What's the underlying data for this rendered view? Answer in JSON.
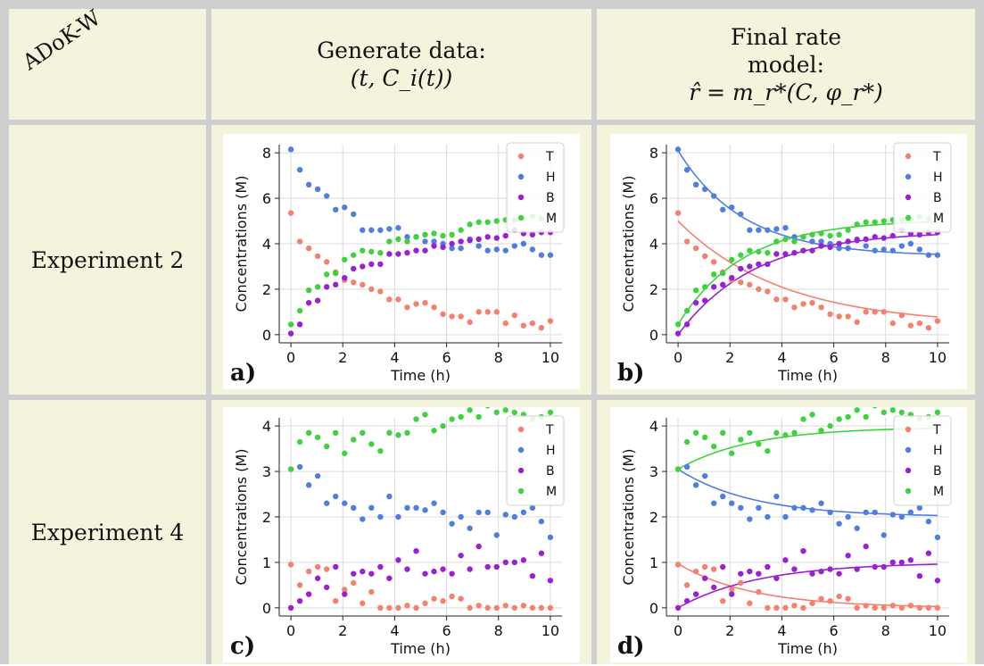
{
  "table": {
    "corner_label": "ADoK-W",
    "col1_header": [
      "Generate data:",
      "(t, C_i(t))"
    ],
    "col2_header": [
      "Final rate",
      "model:",
      "r̂ = m_r*(C, φ_r*)"
    ],
    "rows": [
      "Experiment 2",
      "Experiment 4"
    ]
  },
  "colors": {
    "T": "#f5806d",
    "H": "#4f7ee0",
    "B": "#9a21d3",
    "M": "#3fd23f",
    "cell_bg": "#f4f4dc",
    "border": "#cfcfcf"
  },
  "chart_data": [
    {
      "panel_label": "a)",
      "type": "scatter",
      "xlabel": "Time (h)",
      "ylabel": "Concentrations (M)",
      "xlim": [
        0,
        10
      ],
      "ylim": [
        0,
        8
      ],
      "xticks": [
        0,
        2,
        4,
        6,
        8,
        10
      ],
      "yticks": [
        0,
        2,
        4,
        6,
        8
      ],
      "legend": "top-right",
      "grid": true,
      "x": [
        0,
        0.345,
        0.69,
        1.034,
        1.379,
        1.724,
        2.069,
        2.414,
        2.759,
        3.103,
        3.448,
        3.793,
        4.138,
        4.483,
        4.828,
        5.172,
        5.517,
        5.862,
        6.207,
        6.552,
        6.897,
        7.241,
        7.586,
        7.931,
        8.276,
        8.621,
        8.966,
        9.31,
        9.655,
        10
      ],
      "series": [
        {
          "name": "T",
          "values": [
            5.35,
            4.1,
            3.8,
            3.45,
            3.2,
            2.75,
            2.4,
            2.3,
            2.2,
            2.0,
            1.9,
            1.55,
            1.55,
            1.2,
            1.35,
            1.4,
            1.2,
            0.9,
            0.8,
            0.8,
            0.55,
            1.0,
            1.0,
            1.0,
            0.5,
            0.85,
            0.4,
            0.5,
            0.3,
            0.6
          ]
        },
        {
          "name": "H",
          "values": [
            8.15,
            7.25,
            6.6,
            6.4,
            6.1,
            5.5,
            5.6,
            5.3,
            4.6,
            4.6,
            4.6,
            4.65,
            4.7,
            4.3,
            4.3,
            4.1,
            4.1,
            4.0,
            3.8,
            3.8,
            4.2,
            3.9,
            3.7,
            3.75,
            3.7,
            3.9,
            4.0,
            3.75,
            3.5,
            3.5
          ]
        },
        {
          "name": "B",
          "values": [
            0.05,
            0.45,
            1.4,
            1.5,
            2.1,
            2.2,
            2.5,
            2.9,
            3.0,
            3.1,
            3.1,
            3.55,
            3.55,
            3.6,
            3.7,
            3.7,
            3.9,
            3.85,
            4.0,
            4.1,
            4.15,
            4.2,
            4.3,
            4.25,
            4.35,
            4.6,
            4.45,
            4.4,
            4.5,
            4.5
          ]
        },
        {
          "name": "M",
          "values": [
            0.45,
            1.05,
            1.95,
            2.1,
            2.65,
            2.7,
            3.3,
            3.5,
            3.7,
            3.65,
            3.6,
            4.1,
            4.2,
            4.1,
            4.3,
            4.4,
            4.45,
            4.35,
            4.4,
            4.6,
            4.85,
            4.95,
            4.95,
            5.0,
            5.05,
            5.05,
            5.1,
            5.2,
            5.1,
            5.15
          ]
        }
      ]
    },
    {
      "panel_label": "b)",
      "type": "scatter",
      "xlabel": "Time (h)",
      "ylabel": "Concentrations (M)",
      "xlim": [
        0,
        10
      ],
      "ylim": [
        0,
        8
      ],
      "xticks": [
        0,
        2,
        4,
        6,
        8,
        10
      ],
      "yticks": [
        0,
        2,
        4,
        6,
        8
      ],
      "legend": "top-right",
      "grid": true,
      "fitted_curves": true,
      "x": [
        0,
        0.345,
        0.69,
        1.034,
        1.379,
        1.724,
        2.069,
        2.414,
        2.759,
        3.103,
        3.448,
        3.793,
        4.138,
        4.483,
        4.828,
        5.172,
        5.517,
        5.862,
        6.207,
        6.552,
        6.897,
        7.241,
        7.586,
        7.931,
        8.276,
        8.621,
        8.966,
        9.31,
        9.655,
        10
      ],
      "series": [
        {
          "name": "T",
          "values": [
            5.35,
            4.1,
            3.8,
            3.45,
            3.2,
            2.75,
            2.4,
            2.3,
            2.2,
            2.0,
            1.9,
            1.55,
            1.55,
            1.2,
            1.35,
            1.4,
            1.2,
            0.9,
            0.8,
            0.8,
            0.55,
            1.0,
            1.0,
            1.0,
            0.5,
            0.85,
            0.4,
            0.5,
            0.3,
            0.6
          ],
          "fit": {
            "start": 5.0,
            "end": 0.4,
            "rate": 0.25
          }
        },
        {
          "name": "H",
          "values": [
            8.15,
            7.25,
            6.6,
            6.4,
            6.1,
            5.5,
            5.6,
            5.3,
            4.6,
            4.6,
            4.6,
            4.65,
            4.7,
            4.3,
            4.3,
            4.1,
            4.1,
            4.0,
            3.8,
            3.8,
            4.2,
            3.9,
            3.7,
            3.75,
            3.7,
            3.9,
            4.0,
            3.75,
            3.5,
            3.5
          ],
          "fit": {
            "start": 8.1,
            "end": 3.45,
            "rate": 0.4
          }
        },
        {
          "name": "B",
          "values": [
            0.05,
            0.45,
            1.4,
            1.5,
            2.1,
            2.2,
            2.5,
            2.9,
            3.0,
            3.1,
            3.1,
            3.55,
            3.55,
            3.6,
            3.7,
            3.7,
            3.9,
            3.85,
            4.0,
            4.1,
            4.15,
            4.2,
            4.3,
            4.25,
            4.35,
            4.6,
            4.45,
            4.4,
            4.5,
            4.5
          ],
          "fit": {
            "start": 0.0,
            "end": 4.55,
            "rate": 0.34
          }
        },
        {
          "name": "M",
          "values": [
            0.45,
            1.05,
            1.95,
            2.1,
            2.65,
            2.7,
            3.3,
            3.5,
            3.7,
            3.65,
            3.6,
            4.1,
            4.2,
            4.1,
            4.3,
            4.4,
            4.45,
            4.35,
            4.4,
            4.6,
            4.85,
            4.95,
            4.95,
            5.0,
            5.05,
            5.05,
            5.1,
            5.2,
            5.1,
            5.15
          ],
          "fit": {
            "start": 0.45,
            "end": 5.05,
            "rate": 0.4
          }
        }
      ]
    },
    {
      "panel_label": "c)",
      "type": "scatter",
      "xlabel": "Time (h)",
      "ylabel": "Concentrations (M)",
      "xlim": [
        0,
        10
      ],
      "ylim": [
        0,
        4
      ],
      "xticks": [
        0,
        2,
        4,
        6,
        8,
        10
      ],
      "yticks": [
        0,
        1,
        2,
        3,
        4
      ],
      "legend": "top-right",
      "grid": true,
      "x": [
        0,
        0.345,
        0.69,
        1.034,
        1.379,
        1.724,
        2.069,
        2.414,
        2.759,
        3.103,
        3.448,
        3.793,
        4.138,
        4.483,
        4.828,
        5.172,
        5.517,
        5.862,
        6.207,
        6.552,
        6.897,
        7.241,
        7.586,
        7.931,
        8.276,
        8.621,
        8.966,
        9.31,
        9.655,
        10
      ],
      "series": [
        {
          "name": "T",
          "values": [
            0.95,
            0.5,
            0.8,
            0.9,
            0.85,
            0.15,
            0.4,
            0.55,
            0.1,
            0.35,
            0.0,
            0.0,
            0.0,
            0.05,
            0.0,
            0.1,
            0.2,
            0.15,
            0.25,
            0.2,
            0.0,
            0.05,
            0.0,
            0.0,
            0.05,
            0.0,
            0.05,
            0.0,
            0.0,
            0.0
          ]
        },
        {
          "name": "H",
          "values": [
            3.05,
            3.1,
            2.7,
            2.9,
            2.3,
            2.45,
            2.3,
            2.2,
            1.95,
            2.2,
            2.0,
            2.45,
            2.0,
            2.2,
            2.2,
            2.15,
            2.3,
            2.1,
            1.85,
            2.0,
            1.75,
            2.1,
            2.1,
            1.6,
            2.05,
            2.0,
            2.1,
            2.2,
            1.9,
            1.55
          ]
        },
        {
          "name": "B",
          "values": [
            0.0,
            0.15,
            0.3,
            0.65,
            0.45,
            0.9,
            0.3,
            0.75,
            0.8,
            0.75,
            0.9,
            0.65,
            1.05,
            0.85,
            1.25,
            0.75,
            0.8,
            0.85,
            0.75,
            1.15,
            0.85,
            1.35,
            0.9,
            0.9,
            1.0,
            1.0,
            1.05,
            0.7,
            1.2,
            0.6
          ]
        },
        {
          "name": "M",
          "values": [
            3.05,
            3.65,
            3.85,
            3.75,
            3.55,
            3.85,
            3.4,
            3.7,
            3.85,
            3.6,
            3.45,
            3.85,
            3.8,
            3.85,
            4.15,
            4.25,
            3.9,
            4.0,
            4.15,
            4.2,
            4.35,
            4.2,
            4.45,
            4.3,
            4.35,
            4.3,
            4.25,
            4.15,
            4.2,
            4.3
          ]
        }
      ]
    },
    {
      "panel_label": "d)",
      "type": "scatter",
      "xlabel": "Time (h)",
      "ylabel": "Concentrations (M)",
      "xlim": [
        0,
        10
      ],
      "ylim": [
        0,
        4
      ],
      "xticks": [
        0,
        2,
        4,
        6,
        8,
        10
      ],
      "yticks": [
        0,
        1,
        2,
        3,
        4
      ],
      "legend": "top-right",
      "grid": true,
      "fitted_curves": true,
      "x": [
        0,
        0.345,
        0.69,
        1.034,
        1.379,
        1.724,
        2.069,
        2.414,
        2.759,
        3.103,
        3.448,
        3.793,
        4.138,
        4.483,
        4.828,
        5.172,
        5.517,
        5.862,
        6.207,
        6.552,
        6.897,
        7.241,
        7.586,
        7.931,
        8.276,
        8.621,
        8.966,
        9.31,
        9.655,
        10
      ],
      "series": [
        {
          "name": "T",
          "values": [
            0.95,
            0.5,
            0.8,
            0.9,
            0.85,
            0.15,
            0.4,
            0.55,
            0.1,
            0.35,
            0.0,
            0.0,
            0.0,
            0.05,
            0.0,
            0.1,
            0.2,
            0.15,
            0.25,
            0.2,
            0.0,
            0.05,
            0.0,
            0.0,
            0.05,
            0.0,
            0.05,
            0.0,
            0.0,
            0.0
          ],
          "fit": {
            "start": 0.97,
            "end": 0.0,
            "rate": 0.35
          }
        },
        {
          "name": "H",
          "values": [
            3.05,
            3.1,
            2.7,
            2.9,
            2.3,
            2.45,
            2.3,
            2.2,
            1.95,
            2.2,
            2.0,
            2.45,
            2.0,
            2.2,
            2.2,
            2.15,
            2.3,
            2.1,
            1.85,
            2.0,
            1.75,
            2.1,
            2.1,
            1.6,
            2.05,
            2.0,
            2.1,
            2.2,
            1.9,
            1.55
          ],
          "fit": {
            "start": 3.05,
            "end": 2.0,
            "rate": 0.35
          }
        },
        {
          "name": "B",
          "values": [
            0.0,
            0.15,
            0.3,
            0.65,
            0.45,
            0.9,
            0.3,
            0.75,
            0.8,
            0.75,
            0.9,
            0.65,
            1.05,
            0.85,
            1.25,
            0.75,
            0.8,
            0.85,
            0.75,
            1.15,
            0.85,
            1.35,
            0.9,
            0.9,
            1.0,
            1.0,
            1.05,
            0.7,
            1.2,
            0.6
          ],
          "fit": {
            "start": 0.0,
            "end": 1.0,
            "rate": 0.32
          }
        },
        {
          "name": "M",
          "values": [
            3.05,
            3.65,
            3.85,
            3.75,
            3.55,
            3.85,
            3.4,
            3.7,
            3.85,
            3.6,
            3.45,
            3.85,
            3.8,
            3.85,
            4.15,
            4.25,
            3.9,
            4.0,
            4.15,
            4.2,
            4.35,
            4.2,
            4.45,
            4.3,
            4.35,
            4.3,
            4.25,
            4.15,
            4.2,
            4.3
          ],
          "fit": {
            "start": 3.05,
            "end": 3.98,
            "rate": 0.35
          }
        }
      ]
    }
  ]
}
